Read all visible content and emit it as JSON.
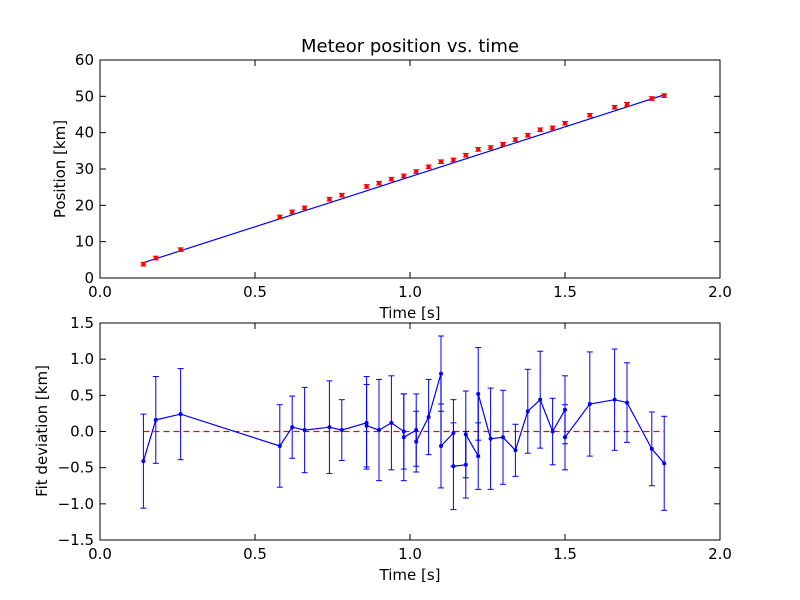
{
  "chart_data": [
    {
      "type": "line",
      "title": "Meteor position vs. time",
      "xlabel": "Time [s]",
      "ylabel": "Position [km]",
      "xlim": [
        0.0,
        2.0
      ],
      "ylim": [
        0,
        60
      ],
      "xticks": [
        "0.0",
        "0.5",
        "1.0",
        "1.5",
        "2.0"
      ],
      "yticks": [
        "0",
        "10",
        "20",
        "30",
        "40",
        "50",
        "60"
      ],
      "grid": false,
      "fit_line": {
        "x": [
          0.14,
          1.82
        ],
        "y": [
          4.2,
          50.4
        ],
        "color": "#0000ff"
      },
      "series": [
        {
          "marker_color": "#ff0000",
          "errorbar_color": "#ff0000",
          "error": 0.5,
          "points": [
            [
              0.14,
              3.8
            ],
            [
              0.18,
              5.5
            ],
            [
              0.26,
              7.8
            ],
            [
              0.58,
              16.8
            ],
            [
              0.62,
              18.2
            ],
            [
              0.66,
              19.3
            ],
            [
              0.74,
              21.7
            ],
            [
              0.78,
              22.8
            ],
            [
              0.86,
              25.2
            ],
            [
              0.9,
              26.1
            ],
            [
              0.94,
              27.2
            ],
            [
              0.98,
              28.1
            ],
            [
              1.02,
              29.3
            ],
            [
              1.06,
              30.6
            ],
            [
              1.1,
              32.0
            ],
            [
              1.14,
              32.5
            ],
            [
              1.18,
              33.8
            ],
            [
              1.22,
              35.4
            ],
            [
              1.26,
              35.9
            ],
            [
              1.3,
              36.8
            ],
            [
              1.34,
              38.1
            ],
            [
              1.38,
              39.3
            ],
            [
              1.42,
              40.8
            ],
            [
              1.46,
              41.3
            ],
            [
              1.5,
              42.6
            ],
            [
              1.58,
              44.8
            ],
            [
              1.66,
              47.0
            ],
            [
              1.7,
              47.8
            ],
            [
              1.78,
              49.4
            ],
            [
              1.82,
              50.2
            ]
          ]
        }
      ]
    },
    {
      "type": "line",
      "title": "",
      "xlabel": "Time [s]",
      "ylabel": "Fit deviation [km]",
      "xlim": [
        0.0,
        2.0
      ],
      "ylim": [
        -1.5,
        1.5
      ],
      "xticks": [
        "0.0",
        "0.5",
        "1.0",
        "1.5",
        "2.0"
      ],
      "yticks": [
        "1.5",
        "1.0",
        "0.5",
        "0.0",
        "−0.5",
        "−1.0",
        "−1.5"
      ],
      "grid": false,
      "zero_line": {
        "y": 0,
        "color": "#ff0000",
        "style": "dashed"
      },
      "series": [
        {
          "color": "#0000ff",
          "points": [
            [
              0.14,
              -0.41,
              0.65
            ],
            [
              0.18,
              0.16,
              0.6
            ],
            [
              0.26,
              0.24,
              0.63
            ],
            [
              0.58,
              -0.2,
              0.57
            ],
            [
              0.62,
              0.06,
              0.43
            ],
            [
              0.66,
              0.02,
              0.59
            ],
            [
              0.74,
              0.06,
              0.64
            ],
            [
              0.78,
              0.02,
              0.42
            ],
            [
              0.86,
              0.12,
              0.64
            ],
            [
              0.86,
              0.08,
              0.57
            ],
            [
              0.9,
              0.02,
              0.7
            ],
            [
              0.94,
              0.12,
              0.65
            ],
            [
              0.98,
              0.0,
              0.52
            ],
            [
              0.98,
              -0.08,
              0.6
            ],
            [
              1.02,
              0.02,
              0.5
            ],
            [
              1.02,
              -0.14,
              0.42
            ],
            [
              1.06,
              0.2,
              0.52
            ],
            [
              1.1,
              0.8,
              0.52
            ],
            [
              1.1,
              -0.2,
              0.58
            ],
            [
              1.14,
              -0.02,
              0.46
            ],
            [
              1.14,
              -0.48,
              0.6
            ],
            [
              1.18,
              -0.46,
              0.46
            ],
            [
              1.18,
              -0.04,
              0.6
            ],
            [
              1.22,
              -0.34,
              0.46
            ],
            [
              1.22,
              0.52,
              0.64
            ],
            [
              1.26,
              -0.1,
              0.7
            ],
            [
              1.3,
              -0.08,
              0.65
            ],
            [
              1.34,
              -0.26,
              0.36
            ],
            [
              1.38,
              0.28,
              0.58
            ],
            [
              1.42,
              0.44,
              0.67
            ],
            [
              1.46,
              0.0,
              0.46
            ],
            [
              1.5,
              0.3,
              0.47
            ],
            [
              1.5,
              -0.08,
              0.45
            ],
            [
              1.58,
              0.38,
              0.72
            ],
            [
              1.66,
              0.44,
              0.7
            ],
            [
              1.7,
              0.4,
              0.55
            ],
            [
              1.78,
              -0.24,
              0.51
            ],
            [
              1.82,
              -0.44,
              0.65
            ]
          ]
        }
      ]
    }
  ]
}
